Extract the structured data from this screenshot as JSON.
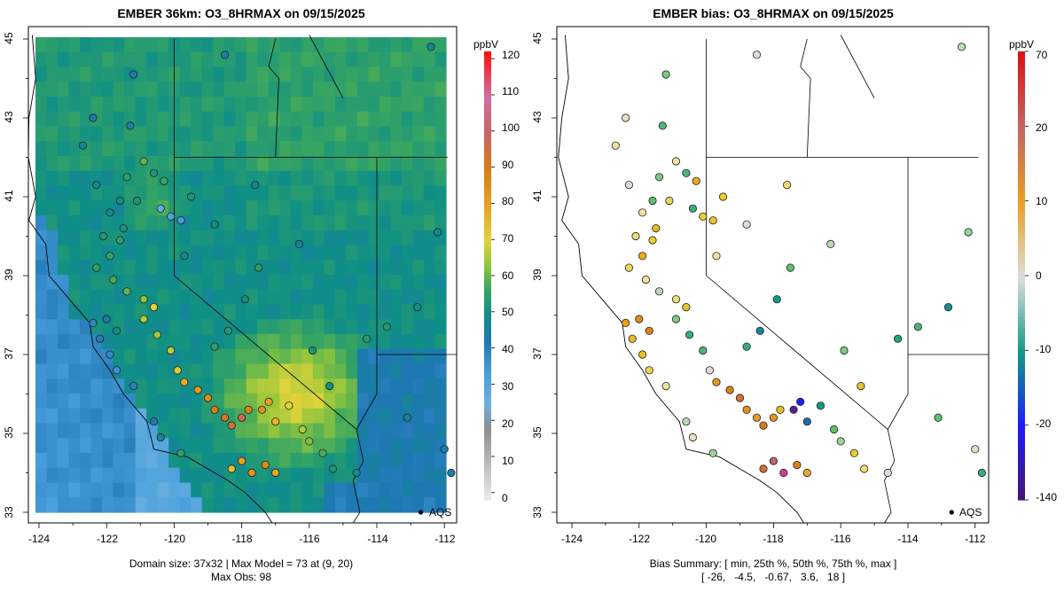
{
  "chart_data": [
    {
      "type": "heatmap",
      "title": "EMBER 36km: O3_8HRMAX on 09/15/2025",
      "x_ticks": [
        "-124",
        "-122",
        "-120",
        "-118",
        "-116",
        "-114",
        "-112"
      ],
      "y_ticks": [
        "33",
        "35",
        "37",
        "39",
        "41",
        "43",
        "45"
      ],
      "xlim": [
        -124.1,
        -111.6
      ],
      "ylim": [
        32.85,
        45.15
      ],
      "colorbar": {
        "label": "ppbV",
        "ticks": [
          "0",
          "10",
          "20",
          "30",
          "40",
          "50",
          "60",
          "70",
          "80",
          "90",
          "100",
          "110",
          "120"
        ],
        "range": [
          -2,
          122
        ]
      },
      "footer": [
        "Domain size: 37x32 | Max Model = 73 at (9, 20)",
        "Max Obs: 98"
      ],
      "site_label": "AQS",
      "site_marker": {
        "lon": -112.7,
        "lat": 33.0
      }
    },
    {
      "type": "scatter",
      "title": "EMBER bias: O3_8HRMAX on 09/15/2025",
      "x_ticks": [
        "-124",
        "-122",
        "-120",
        "-118",
        "-116",
        "-114",
        "-112"
      ],
      "y_ticks": [
        "33",
        "35",
        "37",
        "39",
        "41",
        "43",
        "45"
      ],
      "xlim": [
        -124.1,
        -111.6
      ],
      "ylim": [
        32.85,
        45.15
      ],
      "colorbar": {
        "label": "ppbV",
        "ticks": [
          "-140",
          "-20",
          "-10",
          "0",
          "10",
          "20",
          "70"
        ]
      },
      "footer": [
        "Bias Summary: [ min, 25th %, 50th %, 75th %, max ]",
        "[ -26,   -4.5,   -0.67,   3.6,   18 ]"
      ],
      "bias_summary": {
        "min": -26,
        "p25": -4.5,
        "p50": -0.67,
        "p75": 3.6,
        "max": 18
      },
      "site_label": "AQS",
      "site_marker": {
        "lon": -112.7,
        "lat": 33.0
      }
    }
  ],
  "stations": [
    {
      "lon": -120.4,
      "lat": 40.7,
      "obs": 28,
      "bias": -6
    },
    {
      "lon": -120.1,
      "lat": 40.5,
      "obs": 32,
      "bias": 5
    },
    {
      "lon": -119.8,
      "lat": 40.4,
      "obs": 34,
      "bias": 6
    },
    {
      "lon": -120.6,
      "lat": 41.6,
      "obs": 52,
      "bias": -5
    },
    {
      "lon": -121.4,
      "lat": 41.5,
      "obs": 55,
      "bias": -3
    },
    {
      "lon": -120.3,
      "lat": 41.4,
      "obs": 57,
      "bias": 8
    },
    {
      "lon": -120.9,
      "lat": 41.9,
      "obs": 60,
      "bias": 2
    },
    {
      "lon": -122.3,
      "lat": 41.3,
      "obs": 48,
      "bias": 0
    },
    {
      "lon": -121.6,
      "lat": 40.9,
      "obs": 50,
      "bias": -4
    },
    {
      "lon": -121.1,
      "lat": 40.9,
      "obs": 52,
      "bias": 4
    },
    {
      "lon": -121.9,
      "lat": 40.6,
      "obs": 49,
      "bias": 2
    },
    {
      "lon": -121.5,
      "lat": 40.2,
      "obs": 51,
      "bias": 7
    },
    {
      "lon": -122.1,
      "lat": 40.0,
      "obs": 53,
      "bias": 3
    },
    {
      "lon": -121.6,
      "lat": 39.9,
      "obs": 55,
      "bias": 5
    },
    {
      "lon": -121.9,
      "lat": 39.5,
      "obs": 57,
      "bias": 8
    },
    {
      "lon": -122.3,
      "lat": 39.2,
      "obs": 55,
      "bias": 4
    },
    {
      "lon": -121.8,
      "lat": 38.9,
      "obs": 58,
      "bias": 2
    },
    {
      "lon": -121.4,
      "lat": 38.6,
      "obs": 60,
      "bias": -1
    },
    {
      "lon": -120.9,
      "lat": 38.4,
      "obs": 63,
      "bias": 3
    },
    {
      "lon": -120.6,
      "lat": 38.2,
      "obs": 70,
      "bias": 6
    },
    {
      "lon": -120.9,
      "lat": 37.9,
      "obs": 66,
      "bias": -3
    },
    {
      "lon": -120.5,
      "lat": 37.5,
      "obs": 64,
      "bias": -6
    },
    {
      "lon": -120.1,
      "lat": 37.1,
      "obs": 67,
      "bias": -5
    },
    {
      "lon": -119.9,
      "lat": 36.6,
      "obs": 72,
      "bias": 0
    },
    {
      "lon": -119.7,
      "lat": 36.3,
      "obs": 78,
      "bias": 10
    },
    {
      "lon": -119.3,
      "lat": 36.1,
      "obs": 82,
      "bias": 12
    },
    {
      "lon": -119.0,
      "lat": 35.9,
      "obs": 86,
      "bias": 14
    },
    {
      "lon": -118.8,
      "lat": 35.6,
      "obs": 90,
      "bias": 11
    },
    {
      "lon": -118.5,
      "lat": 35.4,
      "obs": 92,
      "bias": 9
    },
    {
      "lon": -118.3,
      "lat": 35.2,
      "obs": 95,
      "bias": 13
    },
    {
      "lon": -118.0,
      "lat": 35.4,
      "obs": 98,
      "bias": 10
    },
    {
      "lon": -117.8,
      "lat": 35.6,
      "obs": 88,
      "bias": 7
    },
    {
      "lon": -117.4,
      "lat": 35.6,
      "obs": 85,
      "bias": -26
    },
    {
      "lon": -117.2,
      "lat": 35.8,
      "obs": 80,
      "bias": -18
    },
    {
      "lon": -117.0,
      "lat": 35.3,
      "obs": 76,
      "bias": -12
    },
    {
      "lon": -116.6,
      "lat": 35.7,
      "obs": 70,
      "bias": -8
    },
    {
      "lon": -116.2,
      "lat": 35.1,
      "obs": 66,
      "bias": -4
    },
    {
      "lon": -116.0,
      "lat": 34.8,
      "obs": 62,
      "bias": -2
    },
    {
      "lon": -115.6,
      "lat": 34.5,
      "obs": 58,
      "bias": 5
    },
    {
      "lon": -115.3,
      "lat": 34.1,
      "obs": 52,
      "bias": 3
    },
    {
      "lon": -114.6,
      "lat": 34.0,
      "obs": 49,
      "bias": 0
    },
    {
      "lon": -118.3,
      "lat": 34.1,
      "obs": 74,
      "bias": 14
    },
    {
      "lon": -118.0,
      "lat": 34.3,
      "obs": 80,
      "bias": 16
    },
    {
      "lon": -117.7,
      "lat": 34.0,
      "obs": 83,
      "bias": 18
    },
    {
      "lon": -117.3,
      "lat": 34.2,
      "obs": 86,
      "bias": 12
    },
    {
      "lon": -117.0,
      "lat": 34.0,
      "obs": 79,
      "bias": 8
    },
    {
      "lon": -119.8,
      "lat": 34.5,
      "obs": 55,
      "bias": -2
    },
    {
      "lon": -120.4,
      "lat": 34.9,
      "obs": 47,
      "bias": 1
    },
    {
      "lon": -120.6,
      "lat": 35.3,
      "obs": 43,
      "bias": -1
    },
    {
      "lon": -121.2,
      "lat": 36.2,
      "obs": 40,
      "bias": 2
    },
    {
      "lon": -121.7,
      "lat": 36.6,
      "obs": 36,
      "bias": 4
    },
    {
      "lon": -121.9,
      "lat": 37.0,
      "obs": 38,
      "bias": 6
    },
    {
      "lon": -122.2,
      "lat": 37.4,
      "obs": 41,
      "bias": 7
    },
    {
      "lon": -122.4,
      "lat": 37.8,
      "obs": 39,
      "bias": 9
    },
    {
      "lon": -122.0,
      "lat": 37.9,
      "obs": 43,
      "bias": 11
    },
    {
      "lon": -121.7,
      "lat": 37.6,
      "obs": 50,
      "bias": 12
    },
    {
      "lon": -118.8,
      "lat": 37.2,
      "obs": 55,
      "bias": -6
    },
    {
      "lon": -118.4,
      "lat": 37.6,
      "obs": 53,
      "bias": -10
    },
    {
      "lon": -117.9,
      "lat": 38.4,
      "obs": 50,
      "bias": -8
    },
    {
      "lon": -117.5,
      "lat": 39.2,
      "obs": 54,
      "bias": -4
    },
    {
      "lon": -119.7,
      "lat": 39.5,
      "obs": 48,
      "bias": 2
    },
    {
      "lon": -119.5,
      "lat": 41.0,
      "obs": 52,
      "bias": 5
    },
    {
      "lon": -118.8,
      "lat": 40.3,
      "obs": 50,
      "bias": 0
    },
    {
      "lon": -117.6,
      "lat": 41.3,
      "obs": 47,
      "bias": 3
    },
    {
      "lon": -116.3,
      "lat": 39.8,
      "obs": 46,
      "bias": -1
    },
    {
      "lon": -115.9,
      "lat": 37.1,
      "obs": 52,
      "bias": -3
    },
    {
      "lon": -115.4,
      "lat": 36.2,
      "obs": 50,
      "bias": 6
    },
    {
      "lon": -114.3,
      "lat": 37.4,
      "obs": 54,
      "bias": -7
    },
    {
      "lon": -113.7,
      "lat": 37.7,
      "obs": 53,
      "bias": -5
    },
    {
      "lon": -112.8,
      "lat": 38.2,
      "obs": 51,
      "bias": -9
    },
    {
      "lon": -112.2,
      "lat": 40.1,
      "obs": 49,
      "bias": -2
    },
    {
      "lon": -112.0,
      "lat": 34.6,
      "obs": 45,
      "bias": 1
    },
    {
      "lon": -113.1,
      "lat": 35.4,
      "obs": 46,
      "bias": -4
    },
    {
      "lon": -111.8,
      "lat": 34.0,
      "obs": 44,
      "bias": -6
    },
    {
      "lon": -112.4,
      "lat": 44.8,
      "obs": 46,
      "bias": -1
    },
    {
      "lon": -118.5,
      "lat": 44.6,
      "obs": 44,
      "bias": 0
    },
    {
      "lon": -121.2,
      "lat": 44.1,
      "obs": 42,
      "bias": -3
    },
    {
      "lon": -122.4,
      "lat": 43.0,
      "obs": 43,
      "bias": 1
    },
    {
      "lon": -121.3,
      "lat": 42.8,
      "obs": 45,
      "bias": -5
    },
    {
      "lon": -122.7,
      "lat": 42.3,
      "obs": 47,
      "bias": 2
    }
  ]
}
